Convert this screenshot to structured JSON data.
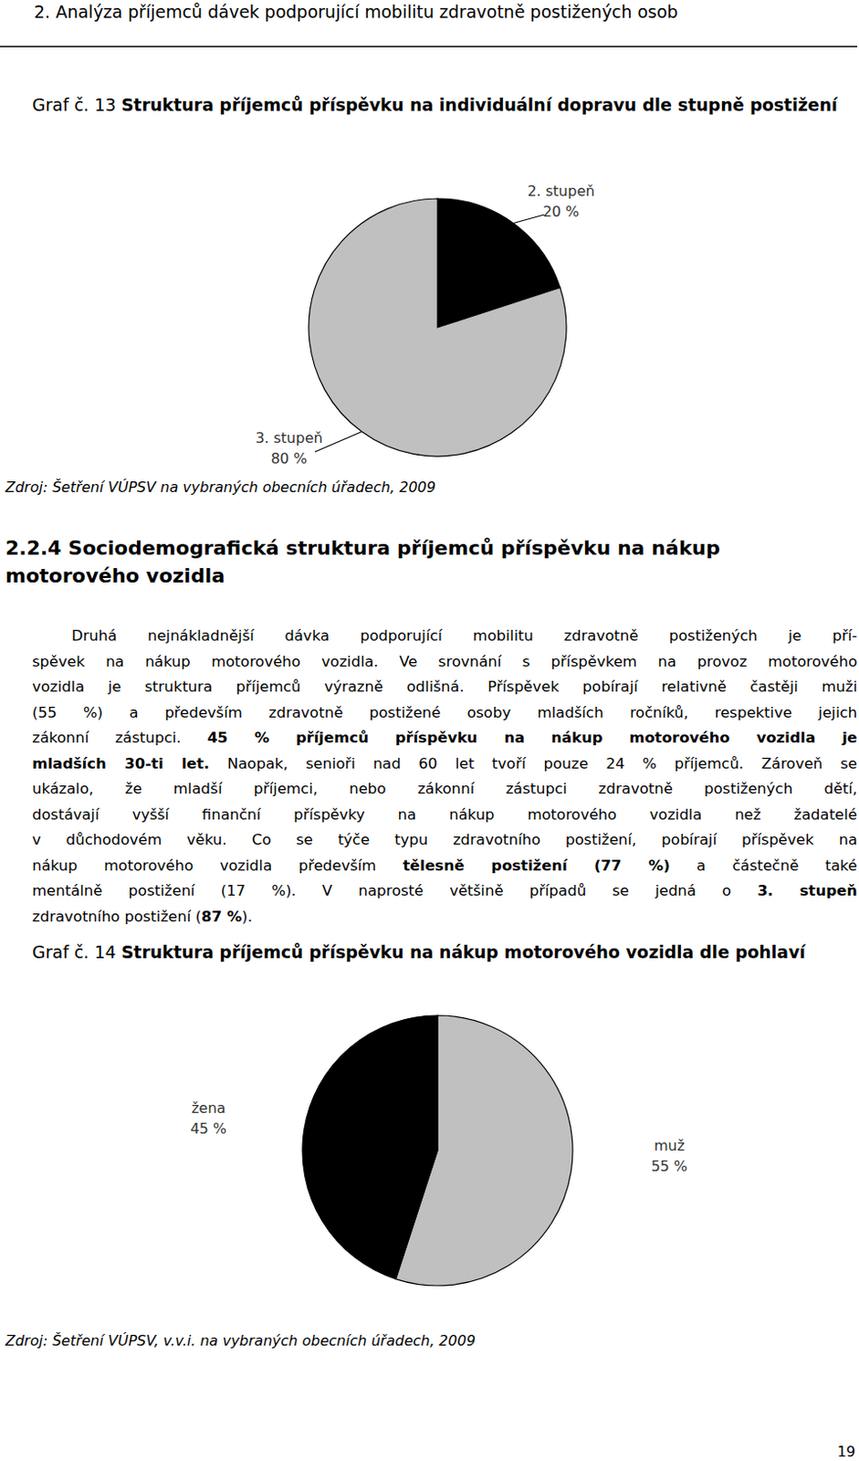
{
  "document": {
    "header": "2. Analýza příjemců dávek podporující mobilitu zdravotně postižených osob",
    "figures": [
      {
        "label": "Graf č. 13",
        "source": "Zdroj: Šetření VÚPSV na vybraných obecních úřadech, 2009"
      },
      {
        "label": "Graf č. 14",
        "source": "Zdroj: Šetření VÚPSV, v.v.i. na vybraných obecních úřadech, 2009"
      }
    ],
    "section_heading": [
      "2.2.4 Sociodemografická struktura příjemců příspěvku na nákup",
      "motorového vozidla"
    ],
    "paragraph_lines": [
      [
        {
          "text": "Druhá nejnákladnější dávka podporující mobilitu zdravotně postižených je pří-"
        }
      ],
      [
        {
          "text": "spěvek na nákup motorového vozidla. Ve srovnání s příspěvkem na provoz motorového"
        }
      ],
      [
        {
          "text": "vozidla je struktura příjemců výrazně odlišná. Příspěvek pobírají relativně častěji muži"
        }
      ],
      [
        {
          "text": "(55 %) a především zdravotně postižené osoby mladších ročníků, respektive jejich"
        }
      ],
      [
        {
          "text": "zákonní zástupci. "
        },
        {
          "text": "45 % příjemců příspěvku na nákup motorového vozidla je",
          "bold": true
        }
      ],
      [
        {
          "text": "mladších 30-ti let.",
          "bold": true
        },
        {
          "text": " Naopak, senioři nad 60 let tvoří pouze 24 % příjemců. Zároveň se"
        }
      ],
      [
        {
          "text": "ukázalo, že mladší příjemci, nebo zákonní zástupci zdravotně postižených dětí,"
        }
      ],
      [
        {
          "text": "dostávají vyšší finanční příspěvky na nákup motorového vozidla než žadatelé"
        }
      ],
      [
        {
          "text": "v důchodovém věku. Co se týče typu zdravotního postižení, pobírají příspěvek na"
        }
      ],
      [
        {
          "text": "nákup motorového vozidla především "
        },
        {
          "text": "tělesně postižení (77 %)",
          "bold": true
        },
        {
          "text": " a částečně také"
        }
      ],
      [
        {
          "text": "mentálně postižení (17 %). V naprosté většině případů se jedná o "
        },
        {
          "text": "3. stupeň",
          "bold": true
        }
      ],
      [
        {
          "text": "zdravotního postižení ("
        },
        {
          "text": "87 %",
          "bold": true
        },
        {
          "text": ")."
        }
      ]
    ],
    "page_number": "19"
  },
  "chart_data": [
    {
      "type": "pie",
      "title": "Struktura příjemců příspěvku na individuální dopravu dle stupně postižení",
      "categories": [
        "2. stupeň",
        "3. stupeň"
      ],
      "values": [
        20,
        80
      ],
      "value_labels": [
        "20 %",
        "80 %"
      ],
      "colors": [
        "#000000",
        "#c0c0c0"
      ],
      "data_labels": true
    },
    {
      "type": "pie",
      "title": "Struktura příjemců příspěvku na nákup motorového vozidla dle pohlaví",
      "categories": [
        "muž",
        "žena"
      ],
      "values": [
        55,
        45
      ],
      "value_labels": [
        "55 %",
        "45 %"
      ],
      "colors": [
        "#c0c0c0",
        "#000000"
      ],
      "data_labels": true
    }
  ]
}
